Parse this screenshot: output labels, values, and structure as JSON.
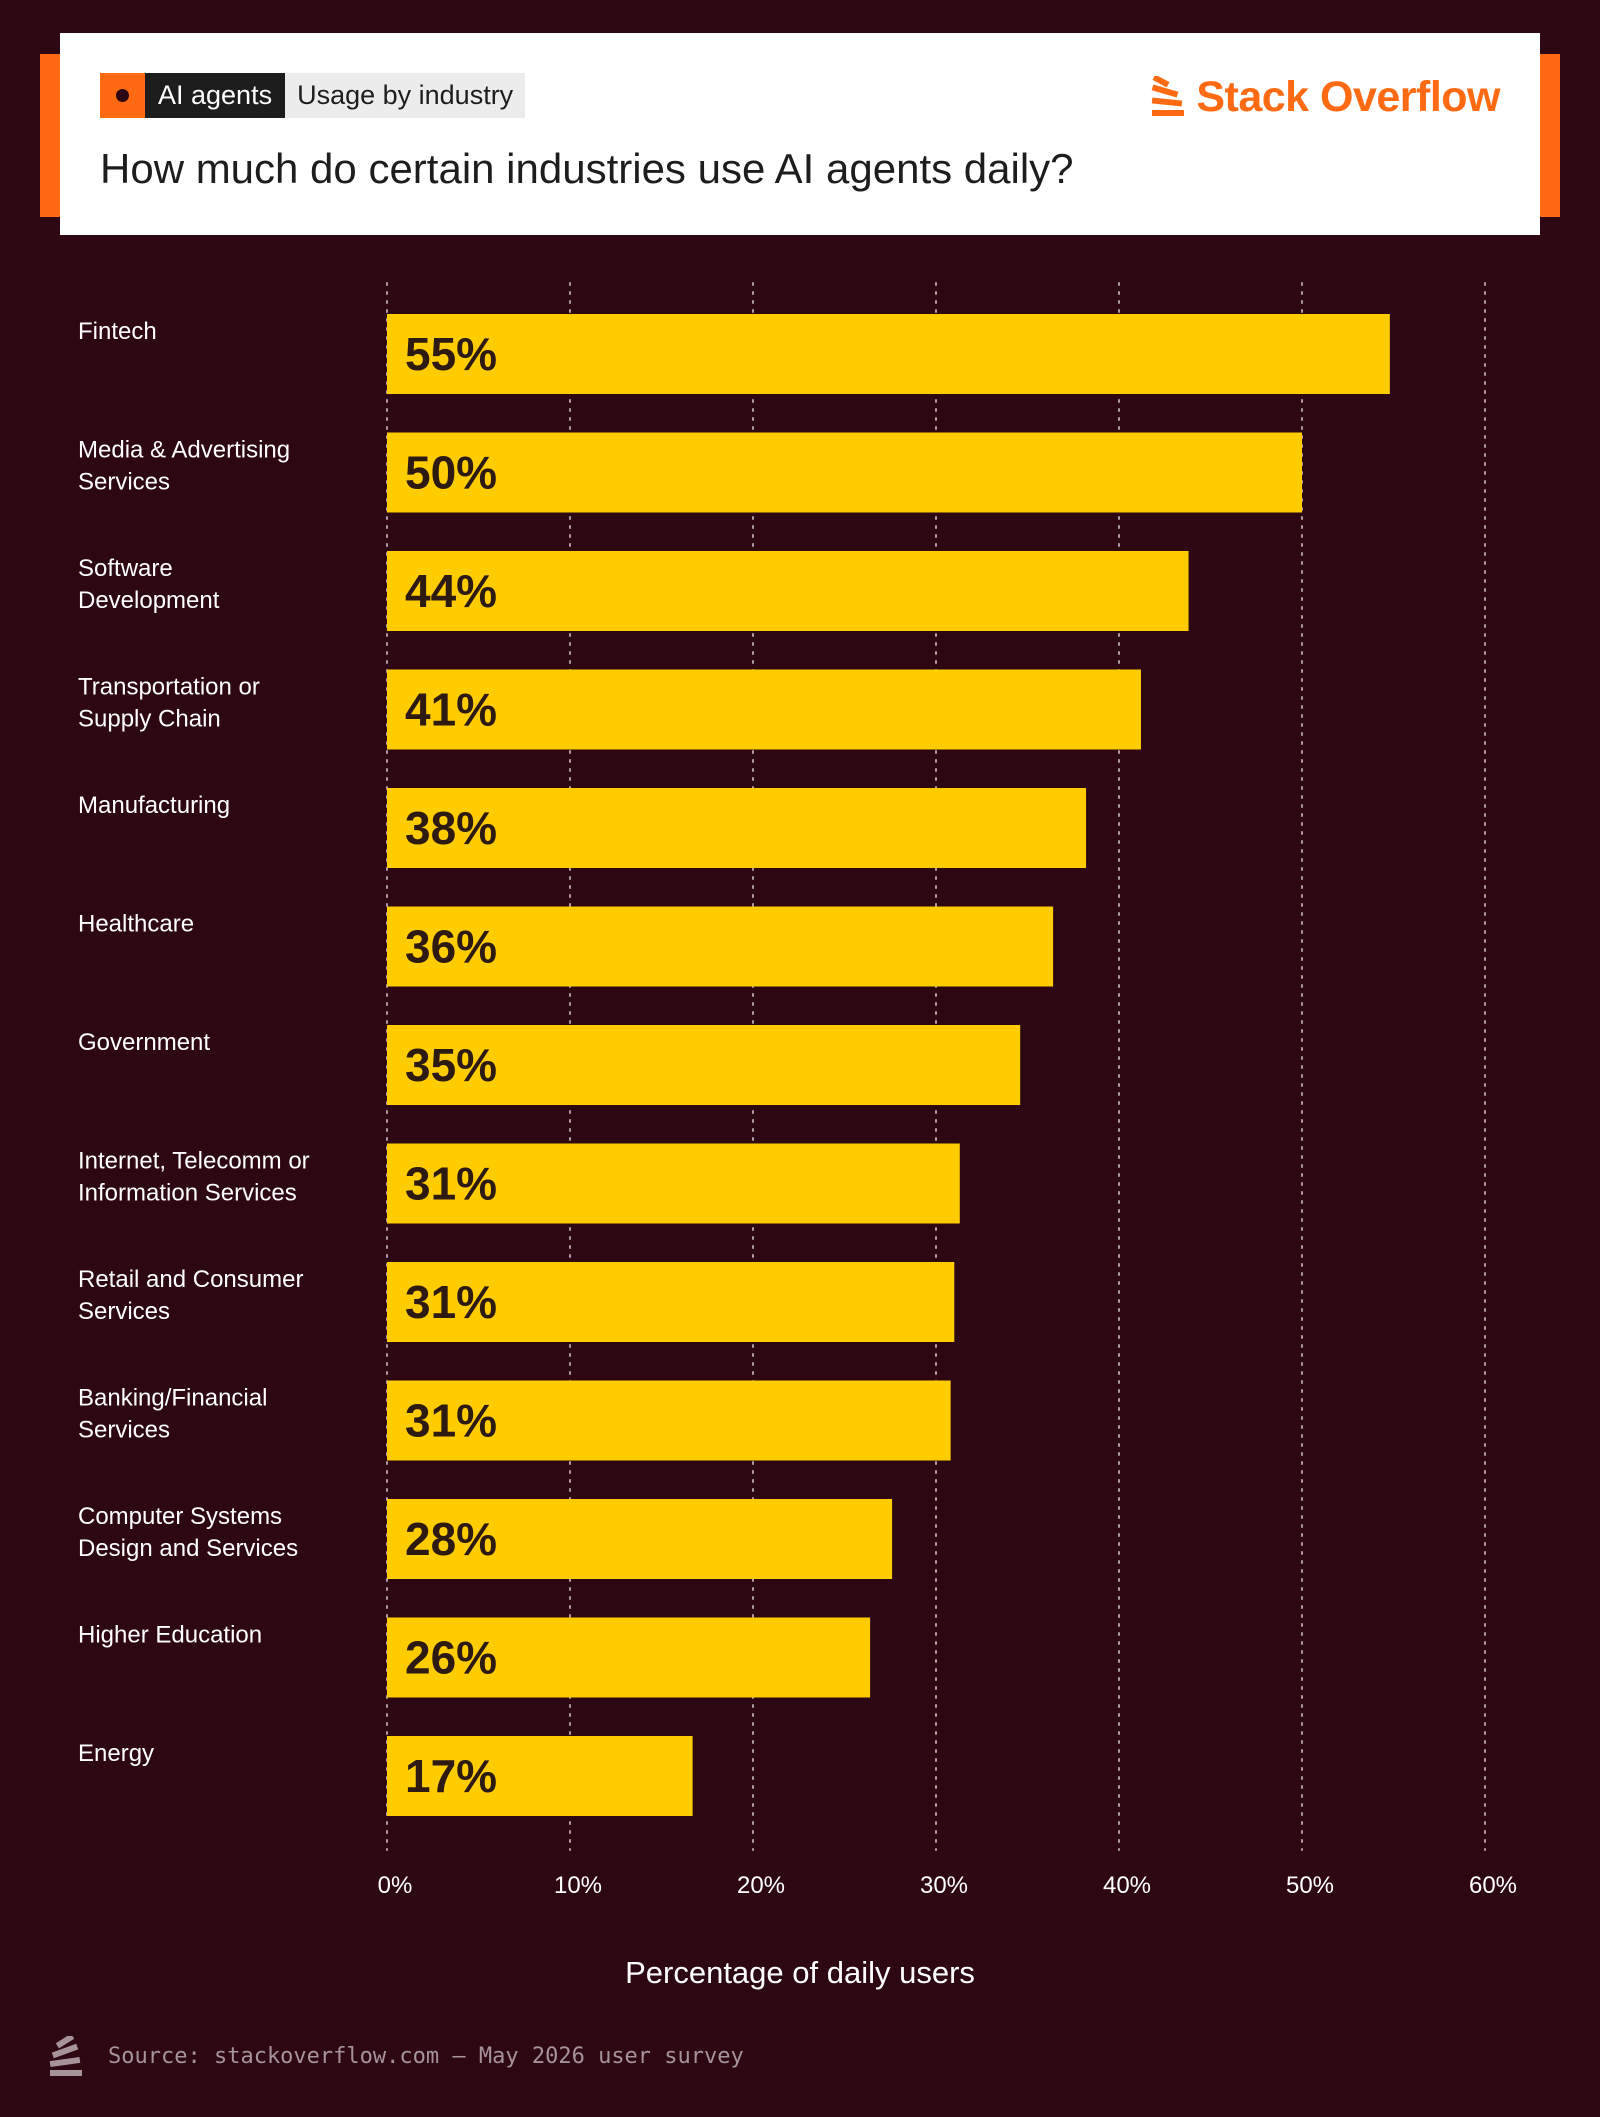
{
  "header": {
    "tag_primary": "AI agents",
    "tag_secondary": "Usage by industry",
    "title": "How much do certain industries use AI agents daily?",
    "brand": "Stack Overflow",
    "brand_color": "#ff6a13",
    "brand_icon": "stack-overflow-logo-icon"
  },
  "colors": {
    "background": "#2d0812",
    "bar": "#ffcc00",
    "accent": "#ff6a13",
    "bar_label": "#2d1a10",
    "text": "#ffffff"
  },
  "chart_data": {
    "type": "bar",
    "orientation": "horizontal",
    "categories": [
      "Fintech",
      "Media & Advertising Services",
      "Software Development",
      "Transportation or Supply Chain",
      "Manufacturing",
      "Healthcare",
      "Government",
      "Internet, Telecomm or Information Services",
      "Retail and Consumer Services",
      "Banking/Financial Services",
      "Computer Systems Design and Services",
      "Higher Education",
      "Energy"
    ],
    "category_lines": [
      [
        "Fintech"
      ],
      [
        "Media & Advertising",
        "Services"
      ],
      [
        "Software",
        "Development"
      ],
      [
        "Transportation or",
        "Supply Chain"
      ],
      [
        "Manufacturing"
      ],
      [
        "Healthcare"
      ],
      [
        "Government"
      ],
      [
        "Internet, Telecomm or",
        "Information Services"
      ],
      [
        "Retail and Consumer",
        "Services"
      ],
      [
        "Banking/Financial",
        "Services"
      ],
      [
        "Computer Systems",
        "Design and Services"
      ],
      [
        "Higher Education"
      ],
      [
        "Energy"
      ]
    ],
    "values": [
      54.8,
      50.0,
      43.8,
      41.2,
      38.2,
      36.4,
      34.6,
      31.3,
      31.0,
      30.8,
      27.6,
      26.4,
      16.7
    ],
    "data_labels": [
      "55%",
      "50%",
      "44%",
      "41%",
      "38%",
      "36%",
      "35%",
      "31%",
      "31%",
      "31%",
      "28%",
      "26%",
      "17%"
    ],
    "xticks": [
      0,
      10,
      20,
      30,
      40,
      50,
      60
    ],
    "xtick_labels": [
      "0%",
      "10%",
      "20%",
      "30%",
      "40%",
      "50%",
      "60%"
    ],
    "xlim": [
      0,
      60
    ],
    "xlabel": "Percentage of daily users",
    "ylabel": "",
    "title": "How much do certain industries use AI agents daily?",
    "grid": "vertical dotted"
  },
  "footer": {
    "source": "Source: stackoverflow.com – May 2026 user survey",
    "icon": "stack-overflow-logo-icon"
  }
}
